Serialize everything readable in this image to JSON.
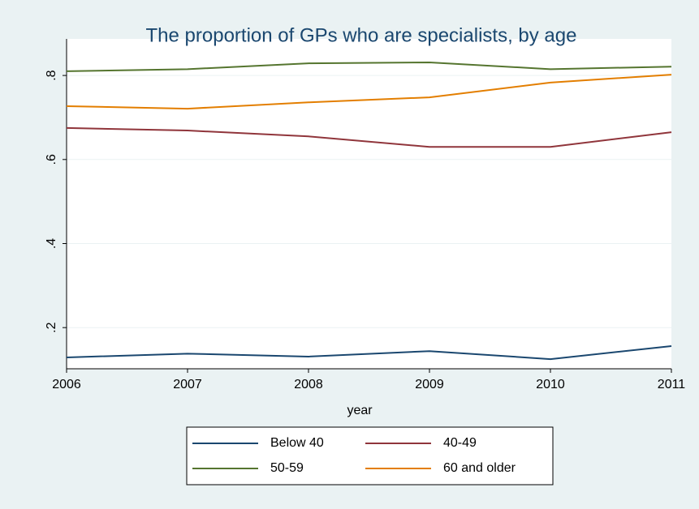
{
  "chart_data": {
    "type": "line",
    "title": "The proportion of GPs who are specialists, by age",
    "x_label": "year",
    "x": [
      2006,
      2007,
      2008,
      2009,
      2010,
      2011
    ],
    "series": [
      {
        "name": "Below 40",
        "color": "#1a476f",
        "values": [
          0.129,
          0.138,
          0.131,
          0.144,
          0.125,
          0.156
        ]
      },
      {
        "name": "40-49",
        "color": "#90353b",
        "values": [
          0.675,
          0.669,
          0.655,
          0.63,
          0.63,
          0.665
        ]
      },
      {
        "name": "50-59",
        "color": "#55752f",
        "values": [
          0.81,
          0.815,
          0.829,
          0.831,
          0.815,
          0.821
        ]
      },
      {
        "name": "60 and older",
        "color": "#e37e00",
        "values": [
          0.727,
          0.721,
          0.736,
          0.748,
          0.783,
          0.802
        ]
      }
    ],
    "xlim": [
      2006,
      2011
    ],
    "xticks": [
      2006,
      2007,
      2008,
      2009,
      2010,
      2011
    ],
    "ylim": [
      0.102,
      0.887
    ],
    "yticks": [
      {
        "value": 0.2,
        "label": ".2"
      },
      {
        "value": 0.4,
        "label": ".4"
      },
      {
        "value": 0.6,
        "label": ".6"
      },
      {
        "value": 0.8,
        "label": ".8"
      }
    ],
    "grid": true,
    "legend": "bottom"
  }
}
